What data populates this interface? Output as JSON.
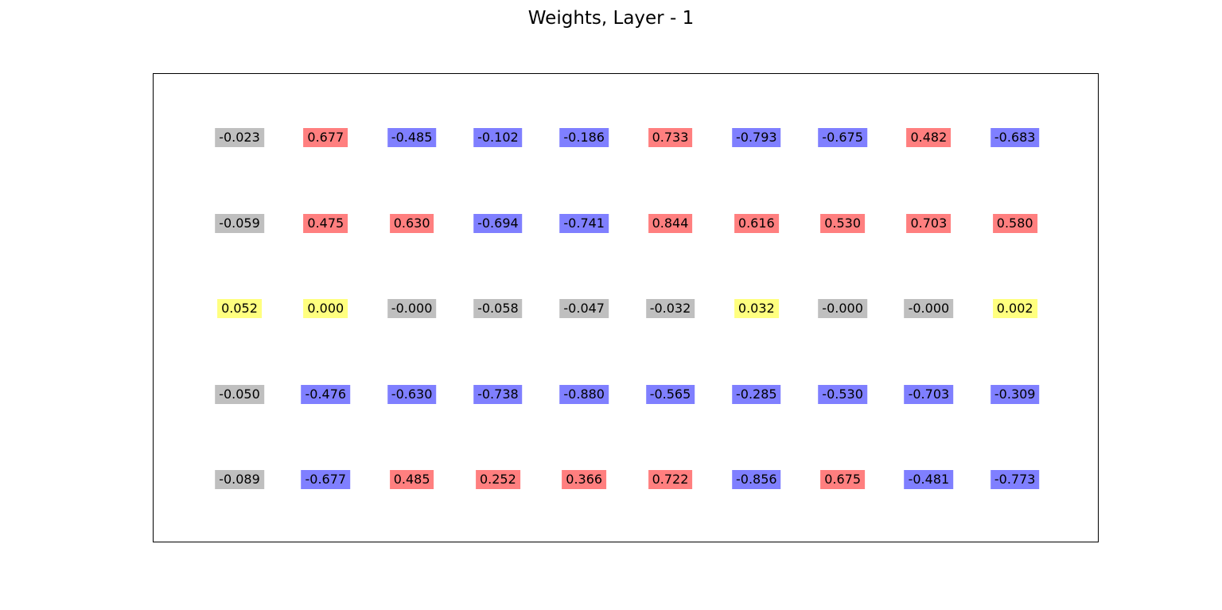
{
  "chart_data": {
    "type": "table",
    "title": "Weights, Layer - 1",
    "rows": [
      [
        "-0.023",
        "0.677",
        "-0.485",
        "-0.102",
        "-0.186",
        "0.733",
        "-0.793",
        "-0.675",
        "0.482",
        "-0.683"
      ],
      [
        "-0.059",
        "0.475",
        "0.630",
        "-0.694",
        "-0.741",
        "0.844",
        "0.616",
        "0.530",
        "0.703",
        "0.580"
      ],
      [
        "0.052",
        "0.000",
        "-0.000",
        "-0.058",
        "-0.047",
        "-0.032",
        "0.032",
        "-0.000",
        "-0.000",
        "0.002"
      ],
      [
        "-0.050",
        "-0.476",
        "-0.630",
        "-0.738",
        "-0.880",
        "-0.565",
        "-0.285",
        "-0.530",
        "-0.703",
        "-0.309"
      ],
      [
        "-0.089",
        "-0.677",
        "0.485",
        "0.252",
        "0.366",
        "0.722",
        "-0.856",
        "0.675",
        "-0.481",
        "-0.773"
      ]
    ],
    "colors": {
      "strong_positive": "#ff7f7f",
      "strong_negative": "#7f7fff",
      "weak_positive": "#ffff7f",
      "weak_negative": "#bfbfbf"
    }
  }
}
